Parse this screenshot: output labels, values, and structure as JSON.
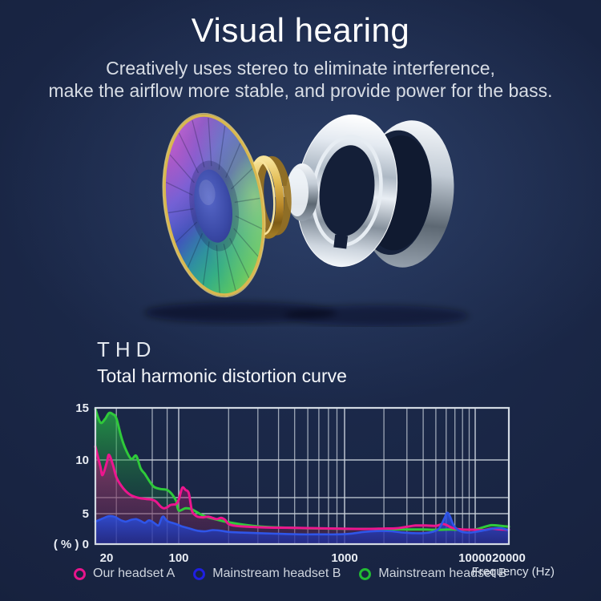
{
  "page": {
    "title": "Visual hearing",
    "subtitle_line1": "Creatively uses stereo to eliminate interference,",
    "subtitle_line2": "make the airflow more stable, and provide power for the bass."
  },
  "section": {
    "heading": "THD",
    "subheading": "Total harmonic distortion curve"
  },
  "chart_data": {
    "type": "line",
    "title": "Total harmonic distortion curve",
    "xlabel": "Frequency (Hz)",
    "ylabel": "( % )",
    "x_scale": "log",
    "x_range": [
      20,
      20000
    ],
    "y_range": [
      0,
      15
    ],
    "grid": true,
    "legend_position": "bottom-left",
    "x_ticks": [
      {
        "value": 20,
        "label": "20"
      },
      {
        "value": 100,
        "label": "100"
      },
      {
        "value": 1000,
        "label": "1000"
      },
      {
        "value": 10000,
        "label": "10000"
      },
      {
        "value": 20000,
        "label": "20000"
      }
    ],
    "y_ticks": [
      {
        "value": 15,
        "label": "15"
      },
      {
        "value": 10,
        "label": "10"
      },
      {
        "value": 5,
        "label": "5"
      },
      {
        "value": 0,
        "label": "( % ) 0"
      }
    ],
    "x_gridlines_minor": [
      30,
      60,
      80,
      200,
      300,
      400,
      500,
      600,
      700,
      800,
      900,
      2000,
      3000,
      4000,
      5000,
      6000,
      7000,
      8000,
      9000
    ],
    "x_gridlines_major": [
      100,
      1000,
      10000
    ],
    "y_gridlines": [
      5,
      6.5,
      10
    ],
    "grid_color": "#c9d1db",
    "series": [
      {
        "name": "Mainstream headset B",
        "line_color": "#2fc93a",
        "fill_top": "rgba(40,190,70,0.72)",
        "fill_bottom": "rgba(18,70,48,0.12)",
        "line_width": 3,
        "points": [
          [
            20,
            14.9
          ],
          [
            22,
            13.6
          ],
          [
            24,
            13.9
          ],
          [
            26,
            14.5
          ],
          [
            28,
            14.4
          ],
          [
            30,
            14.0
          ],
          [
            33,
            12.2
          ],
          [
            36,
            11.0
          ],
          [
            40,
            10.1
          ],
          [
            44,
            10.4
          ],
          [
            48,
            9.2
          ],
          [
            52,
            8.7
          ],
          [
            57,
            8.0
          ],
          [
            62,
            7.5
          ],
          [
            70,
            7.3
          ],
          [
            80,
            7.2
          ],
          [
            88,
            6.8
          ],
          [
            95,
            6.2
          ],
          [
            100,
            5.3
          ],
          [
            110,
            5.5
          ],
          [
            120,
            5.4
          ],
          [
            140,
            4.7
          ],
          [
            160,
            4.2
          ],
          [
            190,
            3.7
          ],
          [
            230,
            3.3
          ],
          [
            280,
            3.0
          ],
          [
            350,
            2.8
          ],
          [
            450,
            2.7
          ],
          [
            600,
            2.6
          ],
          [
            800,
            2.55
          ],
          [
            1000,
            2.5
          ],
          [
            1300,
            2.5
          ],
          [
            1700,
            2.5
          ],
          [
            2200,
            2.45
          ],
          [
            3000,
            2.4
          ],
          [
            4000,
            2.4
          ],
          [
            5000,
            2.35
          ],
          [
            6500,
            2.4
          ],
          [
            8000,
            2.35
          ],
          [
            10000,
            2.4
          ],
          [
            12000,
            2.8
          ],
          [
            14000,
            3.1
          ],
          [
            17000,
            3.0
          ],
          [
            20000,
            2.85
          ]
        ]
      },
      {
        "name": "Our headset A",
        "line_color": "#ec168e",
        "fill_top": "rgba(232,21,140,0.50)",
        "fill_bottom": "rgba(115,20,88,0.30)",
        "line_width": 3,
        "points": [
          [
            20,
            11.3
          ],
          [
            22,
            9.4
          ],
          [
            23,
            8.6
          ],
          [
            25,
            9.8
          ],
          [
            26,
            10.5
          ],
          [
            28,
            9.6
          ],
          [
            30,
            8.4
          ],
          [
            33,
            7.6
          ],
          [
            36,
            7.1
          ],
          [
            40,
            6.7
          ],
          [
            45,
            6.5
          ],
          [
            50,
            6.4
          ],
          [
            55,
            6.35
          ],
          [
            60,
            6.3
          ],
          [
            65,
            6.1
          ],
          [
            70,
            5.7
          ],
          [
            75,
            5.5
          ],
          [
            80,
            5.6
          ],
          [
            85,
            5.8
          ],
          [
            90,
            5.85
          ],
          [
            95,
            5.9
          ],
          [
            100,
            6.3
          ],
          [
            105,
            7.4
          ],
          [
            110,
            7.2
          ],
          [
            115,
            6.9
          ],
          [
            120,
            5.3
          ],
          [
            125,
            4.8
          ],
          [
            130,
            4.5
          ],
          [
            140,
            4.4
          ],
          [
            150,
            4.5
          ],
          [
            160,
            4.3
          ],
          [
            170,
            4.1
          ],
          [
            180,
            4.3
          ],
          [
            190,
            4.0
          ],
          [
            200,
            3.3
          ],
          [
            220,
            3.0
          ],
          [
            260,
            2.85
          ],
          [
            320,
            2.75
          ],
          [
            400,
            2.7
          ],
          [
            550,
            2.65
          ],
          [
            700,
            2.6
          ],
          [
            900,
            2.55
          ],
          [
            1200,
            2.5
          ],
          [
            1600,
            2.5
          ],
          [
            2000,
            2.55
          ],
          [
            2500,
            2.6
          ],
          [
            3000,
            2.85
          ],
          [
            3500,
            3.05
          ],
          [
            4200,
            3.05
          ],
          [
            5000,
            3.0
          ],
          [
            5600,
            3.3
          ],
          [
            6000,
            3.15
          ],
          [
            6800,
            2.6
          ],
          [
            8000,
            2.4
          ],
          [
            10000,
            2.35
          ],
          [
            12000,
            2.3
          ],
          [
            14000,
            2.55
          ],
          [
            16000,
            2.45
          ],
          [
            18000,
            2.4
          ],
          [
            20000,
            2.35
          ]
        ]
      },
      {
        "name": "Mainstream headset B",
        "line_color": "#2f55e8",
        "fill_top": "rgba(45,85,235,0.85)",
        "fill_bottom": "rgba(28,48,168,0.62)",
        "line_width": 2.6,
        "points": [
          [
            20,
            3.7
          ],
          [
            23,
            4.2
          ],
          [
            26,
            4.6
          ],
          [
            29,
            4.5
          ],
          [
            33,
            3.9
          ],
          [
            36,
            3.7
          ],
          [
            40,
            4.0
          ],
          [
            44,
            4.1
          ],
          [
            48,
            3.8
          ],
          [
            52,
            3.5
          ],
          [
            56,
            3.9
          ],
          [
            60,
            3.7
          ],
          [
            64,
            3.3
          ],
          [
            68,
            3.1
          ],
          [
            72,
            4.3
          ],
          [
            75,
            4.5
          ],
          [
            78,
            4.0
          ],
          [
            82,
            3.7
          ],
          [
            88,
            3.5
          ],
          [
            95,
            3.3
          ],
          [
            105,
            2.9
          ],
          [
            115,
            2.6
          ],
          [
            130,
            2.2
          ],
          [
            145,
            2.1
          ],
          [
            160,
            2.3
          ],
          [
            180,
            2.2
          ],
          [
            200,
            2.0
          ],
          [
            240,
            1.9
          ],
          [
            300,
            1.8
          ],
          [
            400,
            1.7
          ],
          [
            550,
            1.6
          ],
          [
            700,
            1.6
          ],
          [
            900,
            1.6
          ],
          [
            1100,
            1.7
          ],
          [
            1400,
            2.0
          ],
          [
            1800,
            2.15
          ],
          [
            2300,
            2.1
          ],
          [
            2800,
            1.9
          ],
          [
            3400,
            1.8
          ],
          [
            4000,
            1.8
          ],
          [
            4700,
            2.0
          ],
          [
            5300,
            2.6
          ],
          [
            5800,
            4.2
          ],
          [
            6100,
            5.1
          ],
          [
            6400,
            4.6
          ],
          [
            6800,
            3.2
          ],
          [
            7300,
            2.4
          ],
          [
            8000,
            2.0
          ],
          [
            9000,
            1.9
          ],
          [
            10000,
            2.0
          ],
          [
            11500,
            2.2
          ],
          [
            13000,
            2.4
          ],
          [
            15000,
            2.6
          ],
          [
            17000,
            2.6
          ],
          [
            19000,
            2.4
          ],
          [
            20000,
            2.3
          ]
        ]
      }
    ],
    "legend": [
      {
        "label": "Our headset A",
        "color": "#e8158c"
      },
      {
        "label": "Mainstream headset B",
        "color": "#1f1fe0"
      },
      {
        "label": "Mainstream headset B",
        "color": "#22bb33"
      }
    ]
  }
}
